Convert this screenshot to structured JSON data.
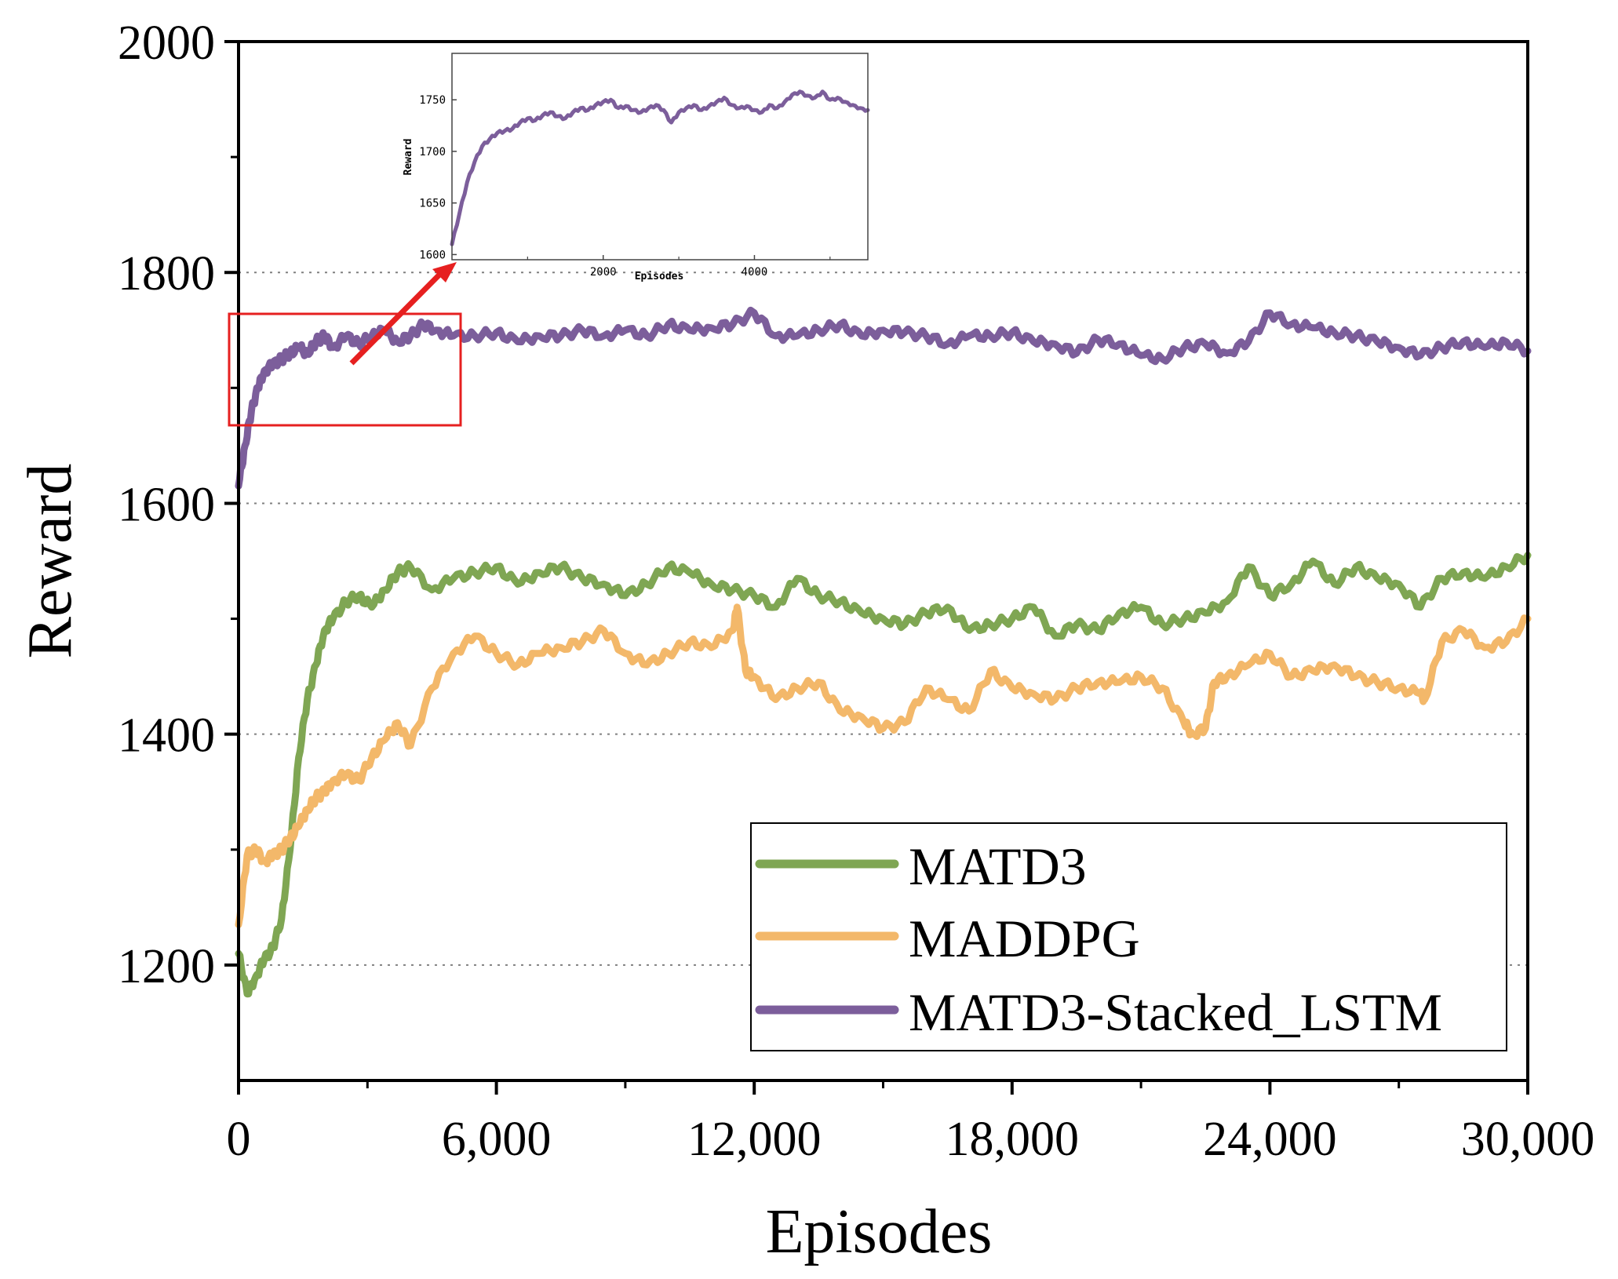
{
  "chart_data": {
    "type": "line",
    "xlabel": "Episodes",
    "ylabel": "Reward",
    "xlim": [
      0,
      30000
    ],
    "ylim": [
      1100,
      2000
    ],
    "xticks": [
      0,
      6000,
      12000,
      18000,
      24000,
      30000
    ],
    "xtick_labels": [
      "0",
      "6,000",
      "12,000",
      "18,000",
      "24,000",
      "30,000"
    ],
    "yticks": [
      1200,
      1400,
      1600,
      1800,
      2000
    ],
    "ytick_labels": [
      "1200",
      "1400",
      "1600",
      "1800",
      "2000"
    ],
    "grid": "horizontal dotted",
    "legend_position": "bottom-right",
    "series": [
      {
        "name": "MATD3",
        "color": "#7fa653",
        "x": [
          0,
          200,
          400,
          600,
          800,
          1000,
          1200,
          1400,
          1600,
          1800,
          2000,
          2200,
          2500,
          2800,
          3100,
          3400,
          3700,
          4000,
          4500,
          5000,
          5500,
          6000,
          6500,
          7000,
          7500,
          8000,
          8500,
          9000,
          9500,
          10000,
          10500,
          11000,
          11500,
          12000,
          12500,
          13000,
          13500,
          14000,
          14500,
          15000,
          15500,
          16000,
          16500,
          17000,
          17500,
          18000,
          18500,
          19000,
          19500,
          20000,
          20500,
          21000,
          21500,
          22000,
          22500,
          23000,
          23500,
          24000,
          24500,
          25000,
          25500,
          26000,
          26500,
          27000,
          27500,
          28000,
          28500,
          29000,
          29500,
          30000
        ],
        "values": [
          1210,
          1175,
          1190,
          1205,
          1215,
          1240,
          1300,
          1380,
          1430,
          1460,
          1490,
          1500,
          1515,
          1520,
          1510,
          1525,
          1540,
          1545,
          1525,
          1535,
          1540,
          1545,
          1530,
          1540,
          1545,
          1535,
          1530,
          1520,
          1530,
          1545,
          1540,
          1530,
          1525,
          1520,
          1510,
          1535,
          1520,
          1515,
          1505,
          1500,
          1495,
          1505,
          1510,
          1490,
          1495,
          1500,
          1510,
          1485,
          1495,
          1490,
          1505,
          1510,
          1495,
          1500,
          1505,
          1515,
          1545,
          1520,
          1530,
          1550,
          1530,
          1545,
          1535,
          1530,
          1510,
          1535,
          1540,
          1535,
          1545,
          1555
        ]
      },
      {
        "name": "MADDPG",
        "color": "#f3b86a",
        "x": [
          0,
          200,
          400,
          600,
          800,
          1000,
          1200,
          1400,
          1600,
          1800,
          2000,
          2200,
          2500,
          2800,
          3100,
          3400,
          3700,
          4000,
          4500,
          5000,
          5500,
          6000,
          6500,
          7000,
          7500,
          8000,
          8500,
          9000,
          9500,
          10000,
          10500,
          11000,
          11500,
          11600,
          11800,
          12000,
          12500,
          13000,
          13500,
          14000,
          14500,
          15000,
          15500,
          16000,
          16500,
          17000,
          17500,
          18000,
          18500,
          19000,
          19500,
          20000,
          20500,
          21000,
          21500,
          22000,
          22200,
          22500,
          22700,
          23000,
          23500,
          24000,
          24500,
          25000,
          25500,
          26000,
          26500,
          27000,
          27500,
          27600,
          28000,
          28500,
          29000,
          29500,
          30000
        ],
        "values": [
          1235,
          1295,
          1300,
          1290,
          1295,
          1300,
          1310,
          1320,
          1335,
          1345,
          1350,
          1360,
          1365,
          1360,
          1380,
          1395,
          1410,
          1390,
          1440,
          1470,
          1485,
          1470,
          1460,
          1470,
          1475,
          1480,
          1490,
          1470,
          1460,
          1470,
          1480,
          1475,
          1490,
          1510,
          1455,
          1450,
          1430,
          1440,
          1445,
          1420,
          1415,
          1405,
          1410,
          1440,
          1430,
          1420,
          1455,
          1440,
          1435,
          1430,
          1440,
          1445,
          1445,
          1450,
          1440,
          1410,
          1400,
          1405,
          1445,
          1450,
          1460,
          1470,
          1450,
          1455,
          1460,
          1450,
          1445,
          1440,
          1435,
          1430,
          1480,
          1490,
          1475,
          1480,
          1500
        ]
      },
      {
        "name": "MATD3-Stacked_LSTM",
        "color": "#7c5e9b",
        "x": [
          0,
          150,
          300,
          450,
          600,
          800,
          1000,
          1200,
          1400,
          1600,
          1800,
          2000,
          2200,
          2500,
          2800,
          3100,
          3400,
          3700,
          4000,
          4300,
          4600,
          5000,
          5500,
          6000,
          6500,
          7000,
          7500,
          8000,
          8500,
          9000,
          9500,
          10000,
          10500,
          11000,
          11500,
          12000,
          12500,
          13000,
          13500,
          14000,
          14500,
          15000,
          15500,
          16000,
          16500,
          17000,
          17500,
          18000,
          18500,
          19000,
          19500,
          20000,
          20500,
          21000,
          21500,
          22000,
          22500,
          23000,
          23500,
          24000,
          24500,
          25000,
          25500,
          26000,
          26500,
          27000,
          27500,
          28000,
          28500,
          29000,
          29500,
          30000
        ],
        "values": [
          1615,
          1650,
          1680,
          1700,
          1715,
          1720,
          1725,
          1730,
          1735,
          1730,
          1740,
          1745,
          1735,
          1745,
          1738,
          1745,
          1750,
          1740,
          1745,
          1755,
          1750,
          1745,
          1745,
          1748,
          1740,
          1745,
          1745,
          1750,
          1745,
          1750,
          1745,
          1755,
          1750,
          1752,
          1755,
          1765,
          1745,
          1745,
          1750,
          1755,
          1745,
          1750,
          1748,
          1745,
          1738,
          1745,
          1745,
          1748,
          1740,
          1738,
          1730,
          1742,
          1738,
          1728,
          1725,
          1735,
          1738,
          1730,
          1740,
          1765,
          1755,
          1752,
          1748,
          1745,
          1740,
          1735,
          1728,
          1735,
          1740,
          1735,
          1740,
          1732
        ]
      }
    ],
    "inset": {
      "xlabel": "Episodes",
      "ylabel": "Reward",
      "xlim": [
        0,
        5500
      ],
      "ylim": [
        1595,
        1795
      ],
      "xticks": [
        2000,
        4000
      ],
      "xtick_labels": [
        "2000",
        "4000"
      ],
      "yticks": [
        1600,
        1650,
        1700,
        1750
      ],
      "ytick_labels": [
        "1600",
        "1650",
        "1700",
        "1750"
      ],
      "series": {
        "name": "MATD3-Stacked_LSTM",
        "color": "#7c5e9b",
        "x": [
          0,
          100,
          200,
          300,
          400,
          500,
          600,
          700,
          800,
          900,
          1000,
          1100,
          1200,
          1300,
          1400,
          1500,
          1600,
          1700,
          1800,
          1900,
          2000,
          2100,
          2200,
          2300,
          2400,
          2500,
          2600,
          2700,
          2800,
          2900,
          3000,
          3100,
          3200,
          3300,
          3400,
          3500,
          3600,
          3700,
          3800,
          3900,
          4000,
          4100,
          4200,
          4300,
          4400,
          4500,
          4600,
          4700,
          4800,
          4900,
          5000,
          5100,
          5200,
          5300,
          5400,
          5500
        ],
        "values": [
          1610,
          1640,
          1670,
          1690,
          1705,
          1712,
          1718,
          1720,
          1722,
          1728,
          1732,
          1730,
          1735,
          1738,
          1734,
          1732,
          1738,
          1742,
          1740,
          1745,
          1748,
          1750,
          1742,
          1744,
          1740,
          1738,
          1742,
          1745,
          1740,
          1728,
          1738,
          1742,
          1745,
          1740,
          1744,
          1748,
          1752,
          1745,
          1742,
          1744,
          1740,
          1738,
          1745,
          1742,
          1748,
          1755,
          1758,
          1754,
          1752,
          1758,
          1750,
          1752,
          1748,
          1745,
          1742,
          1740
        ]
      }
    }
  }
}
